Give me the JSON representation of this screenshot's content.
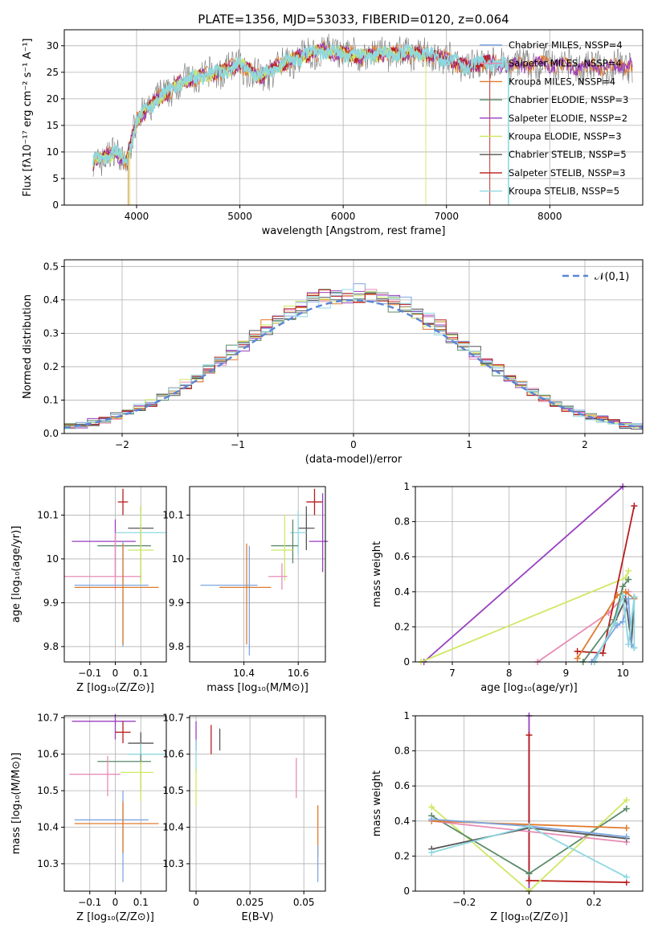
{
  "chart_data": [
    {
      "type": "line",
      "title": "PLATE=1356, MJD=53033, FIBERID=0120, z=0.064",
      "xlabel": "wavelength [Angstrom, rest frame]",
      "ylabel": "Flux [fλ10⁻¹⁷ erg cm⁻² s⁻¹ A⁻¹]",
      "xlim": [
        3300,
        8900
      ],
      "ylim": [
        0,
        33
      ],
      "xticks": [
        4000,
        5000,
        6000,
        7000,
        8000
      ],
      "yticks": [
        0,
        5,
        10,
        15,
        20,
        25,
        30
      ],
      "legend": "right",
      "series": [
        {
          "name": "Chabrier MILES, N_SSP=4",
          "color": "#7ea6e0"
        },
        {
          "name": "Salpeter MILES, N_SSP=4",
          "color": "#e88cb6"
        },
        {
          "name": "Kroupa MILES, N_SSP=4",
          "color": "#e07b2e"
        },
        {
          "name": "Chabrier ELODIE, N_SSP=3",
          "color": "#5a8a6a"
        },
        {
          "name": "Salpeter ELODIE, N_SSP=2",
          "color": "#9a3fc0"
        },
        {
          "name": "Kroupa ELODIE, N_SSP=3",
          "color": "#cfe864"
        },
        {
          "name": "Chabrier STELIB, N_SSP=5",
          "color": "#555555"
        },
        {
          "name": "Salpeter STELIB, N_SSP=3",
          "color": "#b81c1c"
        },
        {
          "name": "Kroupa STELIB, N_SSP=5",
          "color": "#8ed8e0"
        }
      ],
      "envelope": {
        "x": [
          3580,
          3700,
          3800,
          3900,
          4000,
          4100,
          4200,
          4300,
          4400,
          4600,
          4800,
          5000,
          5200,
          5400,
          5600,
          5800,
          6000,
          6200,
          6400,
          6600,
          6800,
          7000,
          7200,
          7400,
          7600,
          7800,
          8000,
          8200,
          8400,
          8600,
          8800
        ],
        "y": [
          8,
          9,
          10,
          8,
          16,
          18,
          20,
          21,
          23,
          24,
          25,
          26.5,
          24,
          26.5,
          28,
          29,
          28.5,
          28,
          28.5,
          28.5,
          28.5,
          27.5,
          26,
          27,
          26,
          26.5,
          26.5,
          26,
          26,
          26,
          26.5
        ]
      }
    },
    {
      "type": "bar",
      "xlabel": "(data-model)/error",
      "ylabel": "Normed distribution",
      "xlim": [
        -2.5,
        2.5
      ],
      "ylim": [
        0,
        0.52
      ],
      "xticks": [
        -2,
        -1,
        0,
        1,
        2
      ],
      "yticks": [
        0.0,
        0.1,
        0.2,
        0.3,
        0.4,
        0.5
      ],
      "legend": "top-right",
      "reference": {
        "name": "𝒩(0,1)",
        "color": "#5b85d6",
        "mean": 0,
        "sigma": 1
      },
      "bin_width": 0.1
    },
    {
      "type": "scatter",
      "xlabel": "Z [log₁₀(Z/Z⊙)]",
      "ylabel": "age  [log₁₀(age/yr)]",
      "xlim": [
        -0.2,
        0.2
      ],
      "ylim": [
        9.765,
        10.165
      ],
      "xticks": [
        -0.1,
        0.0,
        0.1
      ],
      "yticks": [
        9.8,
        9.9,
        10.0,
        10.1
      ],
      "points": [
        {
          "color": "#b81c1c",
          "x": 0.03,
          "y": 10.13,
          "xerr": [
            0.02,
            0.02
          ],
          "yerr": [
            0.03,
            0.03
          ]
        },
        {
          "color": "#555555",
          "x": 0.1,
          "y": 10.07,
          "xerr": [
            0.05,
            0.05
          ],
          "yerr": [
            0.05,
            0.05
          ]
        },
        {
          "color": "#8ed8e0",
          "x": 0.1,
          "y": 10.06,
          "xerr": [
            0.1,
            0.1
          ],
          "yerr": [
            0.05,
            0.05
          ]
        },
        {
          "color": "#9a3fc0",
          "x": 0.0,
          "y": 10.04,
          "xerr": [
            0.17,
            0.08
          ],
          "yerr": [
            0.08,
            0.05
          ]
        },
        {
          "color": "#5a8a6a",
          "x": 0.1,
          "y": 10.03,
          "xerr": [
            0.17,
            0.04
          ],
          "yerr": [
            0.08,
            0.05
          ]
        },
        {
          "color": "#cfe864",
          "x": 0.1,
          "y": 10.02,
          "xerr": [
            0.05,
            0.05
          ],
          "yerr": [
            0.08,
            0.1
          ]
        },
        {
          "color": "#e88cb6",
          "x": 0.0,
          "y": 9.96,
          "xerr": [
            0.2,
            0.1
          ],
          "yerr": [
            0.03,
            0.1
          ]
        },
        {
          "color": "#7ea6e0",
          "x": 0.03,
          "y": 9.94,
          "xerr": [
            0.19,
            0.1
          ],
          "yerr": [
            0.14,
            0.1
          ]
        },
        {
          "color": "#e07b2e",
          "x": 0.03,
          "y": 9.935,
          "xerr": [
            0.19,
            0.14
          ],
          "yerr": [
            0.13,
            0.1
          ]
        }
      ]
    },
    {
      "type": "scatter",
      "xlabel": "mass [log₁₀(M/M⊙)]",
      "xlim": [
        10.2,
        10.7
      ],
      "ylim": [
        9.765,
        10.165
      ],
      "xticks": [
        10.4,
        10.6
      ],
      "yticks": [
        9.8,
        9.9,
        10.0,
        10.1
      ],
      "points": [
        {
          "color": "#b81c1c",
          "x": 10.66,
          "y": 10.13,
          "xerr": [
            0.03,
            0.03
          ],
          "yerr": [
            0.03,
            0.03
          ]
        },
        {
          "color": "#555555",
          "x": 10.63,
          "y": 10.07,
          "xerr": [
            0.03,
            0.03
          ],
          "yerr": [
            0.05,
            0.05
          ]
        },
        {
          "color": "#8ed8e0",
          "x": 10.6,
          "y": 10.06,
          "xerr": [
            0.03,
            0.03
          ],
          "yerr": [
            0.05,
            0.05
          ]
        },
        {
          "color": "#9a3fc0",
          "x": 10.69,
          "y": 10.04,
          "xerr": [
            0.05,
            0.02
          ],
          "yerr": [
            0.07,
            0.11
          ]
        },
        {
          "color": "#5a8a6a",
          "x": 10.58,
          "y": 10.03,
          "xerr": [
            0.08,
            0.02
          ],
          "yerr": [
            0.04,
            0.06
          ]
        },
        {
          "color": "#cfe864",
          "x": 10.55,
          "y": 10.02,
          "xerr": [
            0.05,
            0.03
          ],
          "yerr": [
            0.07,
            0.08
          ]
        },
        {
          "color": "#e88cb6",
          "x": 10.54,
          "y": 9.96,
          "xerr": [
            0.05,
            0.02
          ],
          "yerr": [
            0.03,
            0.03
          ]
        },
        {
          "color": "#7ea6e0",
          "x": 10.42,
          "y": 9.94,
          "xerr": [
            0.18,
            0.03
          ],
          "yerr": [
            0.16,
            0.09
          ]
        },
        {
          "color": "#e07b2e",
          "x": 10.41,
          "y": 9.935,
          "xerr": [
            0.1,
            0.09
          ],
          "yerr": [
            0.13,
            0.1
          ]
        }
      ]
    },
    {
      "type": "line",
      "xlabel": "age  [log₁₀(age/yr)]",
      "ylabel": "mass weight",
      "xlim": [
        6.35,
        10.35
      ],
      "ylim": [
        0.0,
        1.0
      ],
      "xticks": [
        7,
        8,
        9,
        10
      ],
      "yticks": [
        0.0,
        0.2,
        0.4,
        0.6,
        0.8,
        1.0
      ],
      "series": [
        {
          "color": "#9a3fc0",
          "x": [
            6.5,
            10.0
          ],
          "y": [
            0.0,
            1.0
          ]
        },
        {
          "color": "#cfe864",
          "x": [
            6.45,
            10.05,
            10.1
          ],
          "y": [
            0.0,
            0.48,
            0.52
          ]
        },
        {
          "color": "#e88cb6",
          "x": [
            8.5,
            9.75,
            10.1
          ],
          "y": [
            0.0,
            0.28,
            0.4
          ]
        },
        {
          "color": "#b81c1c",
          "x": [
            9.2,
            9.65,
            10.2
          ],
          "y": [
            0.06,
            0.05,
            0.89
          ]
        },
        {
          "color": "#e07b2e",
          "x": [
            9.2,
            9.9,
            10.05,
            10.2
          ],
          "y": [
            0.02,
            0.38,
            0.4,
            0.36
          ]
        },
        {
          "color": "#5a8a6a",
          "x": [
            9.3,
            9.85,
            10.0,
            10.1
          ],
          "y": [
            0.0,
            0.24,
            0.43,
            0.47
          ]
        },
        {
          "color": "#555555",
          "x": [
            9.5,
            9.85,
            10.05,
            10.15,
            10.2
          ],
          "y": [
            0.0,
            0.22,
            0.36,
            0.1,
            0.37
          ]
        },
        {
          "color": "#7ea6e0",
          "x": [
            9.45,
            9.9,
            10.0,
            10.1,
            10.15,
            10.2
          ],
          "y": [
            0.0,
            0.21,
            0.23,
            0.36,
            0.1,
            0.08
          ]
        },
        {
          "color": "#8ed8e0",
          "x": [
            9.5,
            9.85,
            10.0,
            10.1,
            10.2,
            10.2
          ],
          "y": [
            0.0,
            0.22,
            0.38,
            0.1,
            0.37,
            0.08
          ]
        }
      ]
    },
    {
      "type": "scatter",
      "xlabel": "Z [log₁₀(Z/Z⊙)]",
      "ylabel": "mass [log₁₀(M/M⊙)]",
      "xlim": [
        -0.2,
        0.2
      ],
      "ylim": [
        10.225,
        10.705
      ],
      "xticks": [
        -0.1,
        0.0,
        0.1
      ],
      "yticks": [
        10.3,
        10.4,
        10.5,
        10.6,
        10.7
      ],
      "points": [
        {
          "color": "#9a3fc0",
          "x": 0.0,
          "y": 10.69,
          "xerr": [
            0.17,
            0.08
          ],
          "yerr": [
            0.05,
            0.02
          ]
        },
        {
          "color": "#b81c1c",
          "x": 0.03,
          "y": 10.66,
          "xerr": [
            0.03,
            0.03
          ],
          "yerr": [
            0.03,
            0.03
          ]
        },
        {
          "color": "#555555",
          "x": 0.1,
          "y": 10.63,
          "xerr": [
            0.05,
            0.05
          ],
          "yerr": [
            0.03,
            0.03
          ]
        },
        {
          "color": "#8ed8e0",
          "x": 0.1,
          "y": 10.6,
          "xerr": [
            0.05,
            0.1
          ],
          "yerr": [
            0.03,
            0.03
          ]
        },
        {
          "color": "#5a8a6a",
          "x": 0.1,
          "y": 10.58,
          "xerr": [
            0.17,
            0.04
          ],
          "yerr": [
            0.08,
            0.02
          ]
        },
        {
          "color": "#cfe864",
          "x": 0.1,
          "y": 10.55,
          "xerr": [
            0.08,
            0.05
          ],
          "yerr": [
            0.08,
            0.03
          ]
        },
        {
          "color": "#e88cb6",
          "x": -0.03,
          "y": 10.545,
          "xerr": [
            0.15,
            0.05
          ],
          "yerr": [
            0.06,
            0.05
          ]
        },
        {
          "color": "#7ea6e0",
          "x": 0.03,
          "y": 10.42,
          "xerr": [
            0.19,
            0.1
          ],
          "yerr": [
            0.17,
            0.08
          ]
        },
        {
          "color": "#e07b2e",
          "x": 0.03,
          "y": 10.41,
          "xerr": [
            0.19,
            0.14
          ],
          "yerr": [
            0.08,
            0.06
          ]
        }
      ]
    },
    {
      "type": "scatter",
      "xlabel": "E(B-V)",
      "xlim": [
        -0.003,
        0.06
      ],
      "ylim": [
        10.225,
        10.705
      ],
      "xticks": [
        0.0,
        0.025,
        0.05
      ],
      "yticks": [
        10.3,
        10.4,
        10.5,
        10.6,
        10.7
      ],
      "points": [
        {
          "color": "#9a3fc0",
          "x": 0.0,
          "y": 10.65,
          "yerr": [
            0.04,
            0.04
          ]
        },
        {
          "color": "#8ed8e0",
          "x": 0.0,
          "y": 10.6,
          "yerr": [
            0.05,
            0.04
          ]
        },
        {
          "color": "#cfe864",
          "x": 0.0,
          "y": 10.51,
          "yerr": [
            0.05,
            0.05
          ]
        },
        {
          "color": "#b81c1c",
          "x": 0.007,
          "y": 10.64,
          "yerr": [
            0.04,
            0.04
          ]
        },
        {
          "color": "#555555",
          "x": 0.011,
          "y": 10.64,
          "yerr": [
            0.03,
            0.03
          ]
        },
        {
          "color": "#e88cb6",
          "x": 0.0465,
          "y": 10.54,
          "yerr": [
            0.06,
            0.05
          ]
        },
        {
          "color": "#e07b2e",
          "x": 0.0565,
          "y": 10.39,
          "yerr": [
            0.07,
            0.07
          ]
        },
        {
          "color": "#7ea6e0",
          "x": 0.0565,
          "y": 10.3,
          "yerr": [
            0.05,
            0.05
          ]
        }
      ]
    },
    {
      "type": "line",
      "xlabel": "Z [log₁₀(Z/Z⊙)]",
      "ylabel": "mass weight",
      "xlim": [
        -0.35,
        0.35
      ],
      "ylim": [
        0.0,
        1.0
      ],
      "xticks": [
        -0.2,
        0.0,
        0.2
      ],
      "yticks": [
        0.0,
        0.2,
        0.4,
        0.6,
        0.8,
        1.0
      ],
      "series": [
        {
          "color": "#9a3fc0",
          "x": [
            0.0,
            0.0
          ],
          "y": [
            0.0,
            1.0
          ]
        },
        {
          "color": "#b81c1c",
          "x": [
            0.0,
            0.0,
            0.3
          ],
          "y": [
            0.89,
            0.06,
            0.05
          ]
        },
        {
          "color": "#cfe864",
          "x": [
            -0.3,
            0.0,
            0.3
          ],
          "y": [
            0.48,
            0.0,
            0.52
          ]
        },
        {
          "color": "#5a8a6a",
          "x": [
            -0.3,
            0.0,
            0.3
          ],
          "y": [
            0.43,
            0.1,
            0.47
          ]
        },
        {
          "color": "#e88cb6",
          "x": [
            -0.3,
            0.3
          ],
          "y": [
            0.4,
            0.28
          ]
        },
        {
          "color": "#e07b2e",
          "x": [
            -0.3,
            0.3
          ],
          "y": [
            0.4,
            0.36
          ]
        },
        {
          "color": "#555555",
          "x": [
            -0.3,
            0.0,
            0.3
          ],
          "y": [
            0.24,
            0.36,
            0.3
          ]
        },
        {
          "color": "#7ea6e0",
          "x": [
            -0.3,
            0.0,
            0.3
          ],
          "y": [
            0.41,
            0.37,
            0.31
          ]
        },
        {
          "color": "#8ed8e0",
          "x": [
            -0.3,
            0.0,
            0.3
          ],
          "y": [
            0.22,
            0.37,
            0.08
          ]
        }
      ]
    }
  ]
}
